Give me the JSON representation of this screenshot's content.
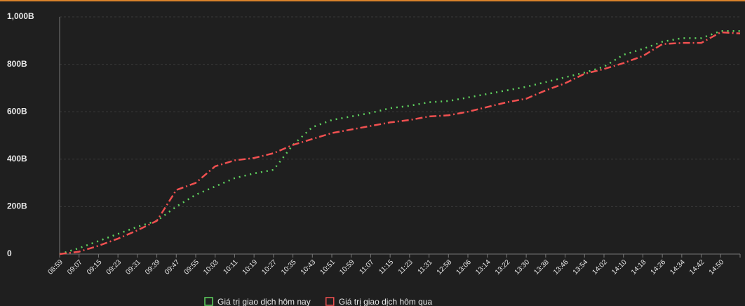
{
  "chart_data": {
    "type": "line",
    "categories": [
      "08:59",
      "09:07",
      "09:15",
      "09:23",
      "09:31",
      "09:39",
      "09:47",
      "09:55",
      "10:03",
      "10:11",
      "10:19",
      "10:27",
      "10:35",
      "10:43",
      "10:51",
      "10:59",
      "11:07",
      "11:15",
      "11:23",
      "11:31",
      "12:58",
      "13:06",
      "13:14",
      "13:22",
      "13:30",
      "13:38",
      "13:46",
      "13:54",
      "14:02",
      "14:10",
      "14:18",
      "14:26",
      "14:34",
      "14:42",
      "14:50",
      null
    ],
    "series": [
      {
        "name": "Giá trị giao dịch hôm nay",
        "color": "#5fd35f",
        "dash": "2 6",
        "values": [
          0,
          25,
          55,
          85,
          115,
          140,
          200,
          250,
          285,
          320,
          340,
          355,
          460,
          535,
          565,
          580,
          595,
          615,
          625,
          640,
          645,
          660,
          675,
          690,
          705,
          725,
          745,
          765,
          790,
          840,
          865,
          895,
          910,
          910,
          940,
          940
        ]
      },
      {
        "name": "Giá trị giao dịch hôm qua",
        "color": "#f05050",
        "dash": "10 4 2 4",
        "values": [
          0,
          10,
          35,
          65,
          100,
          140,
          270,
          300,
          370,
          395,
          405,
          425,
          460,
          485,
          510,
          525,
          540,
          555,
          565,
          580,
          585,
          600,
          620,
          640,
          655,
          690,
          720,
          760,
          780,
          805,
          835,
          885,
          890,
          890,
          935,
          930
        ]
      }
    ],
    "ylim": [
      0,
      1000
    ],
    "yticks": [
      0,
      {
        "value": 200,
        "label": "200B"
      },
      {
        "value": 400,
        "label": "400B"
      },
      {
        "value": 600,
        "label": "600B"
      },
      {
        "value": 800,
        "label": "800B"
      },
      {
        "value": 1000,
        "label": "1,000B"
      }
    ],
    "grid": true,
    "legend": "bottom"
  }
}
